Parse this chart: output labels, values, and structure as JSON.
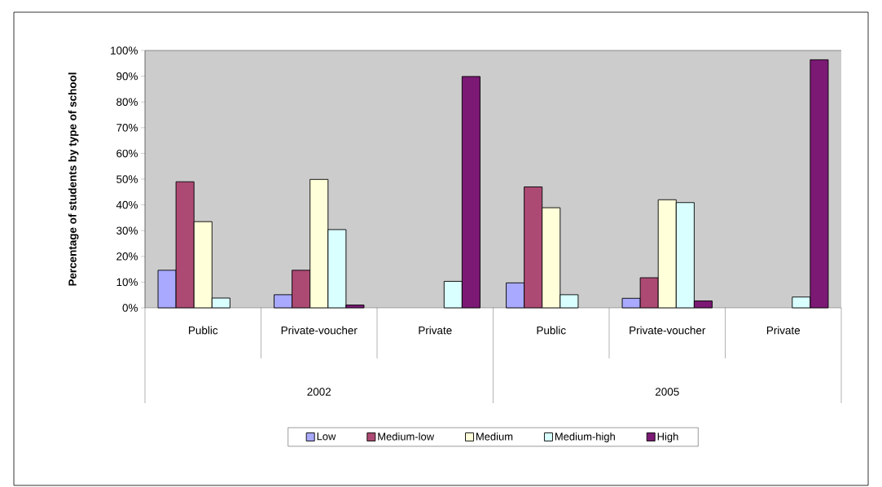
{
  "chart_data": {
    "type": "bar",
    "ylabel": "Percentage of students by type of school",
    "categories": [
      "Public",
      "Private-voucher",
      "Private",
      "Public",
      "Private-voucher",
      "Private"
    ],
    "series": [
      {
        "name": "Low",
        "color": "#a9a9ff",
        "values": [
          14.6,
          5.1,
          null,
          9.7,
          3.7,
          null
        ]
      },
      {
        "name": "Medium-low",
        "color": "#ad4a74",
        "values": [
          49.0,
          14.6,
          null,
          47.0,
          11.7,
          null
        ]
      },
      {
        "name": "Medium",
        "color": "#ffffd9",
        "values": [
          33.5,
          49.9,
          null,
          38.9,
          42.0,
          null
        ]
      },
      {
        "name": "Medium-high",
        "color": "#d9ffff",
        "values": [
          3.8,
          30.4,
          10.3,
          5.1,
          40.9,
          4.2
        ]
      },
      {
        "name": "High",
        "color": "#7b1974",
        "values": [
          null,
          1.1,
          89.9,
          null,
          2.7,
          96.4
        ]
      }
    ],
    "ylim": [
      0,
      100
    ],
    "yticks": [
      {
        "value": 0,
        "label": "0%"
      },
      {
        "value": 10,
        "label": "10%"
      },
      {
        "value": 20,
        "label": "20%"
      },
      {
        "value": 30,
        "label": "30%"
      },
      {
        "value": 40,
        "label": "40%"
      },
      {
        "value": 50,
        "label": "50%"
      },
      {
        "value": 60,
        "label": "60%"
      },
      {
        "value": 70,
        "label": "70%"
      },
      {
        "value": 80,
        "label": "80%"
      },
      {
        "value": 90,
        "label": "90%"
      },
      {
        "value": 100,
        "label": "100%"
      }
    ],
    "annotations": [
      "2002",
      "2005"
    ],
    "legend": "bottom"
  }
}
